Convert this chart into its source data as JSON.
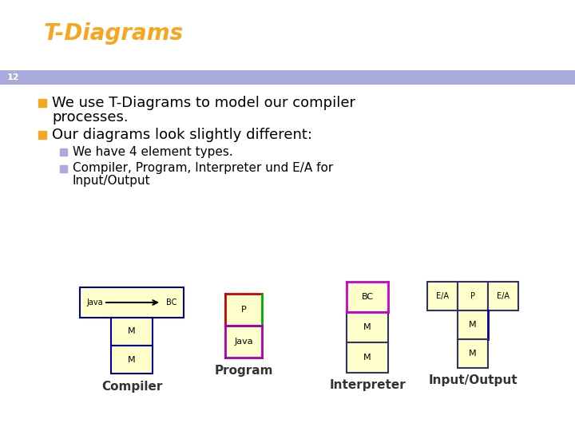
{
  "title": "T-Diagrams",
  "title_color": "#F5A623",
  "slide_number": "12",
  "slide_number_bg": "#FFFFFF",
  "header_bar_color": "#AAAADD",
  "background_color": "#FFFFFF",
  "bullet1a": "We use T-Diagrams to model our compiler",
  "bullet1b": "processes.",
  "bullet2": "Our diagrams look slightly different:",
  "sub_bullet1": "We have 4 element types.",
  "sub_bullet2a": "Compiler, Program, Interpreter und E/A for",
  "sub_bullet2b": "Input/Output",
  "bullet_color": "#F5A623",
  "sub_bullet_color": "#AAAADD",
  "text_color": "#000000",
  "diagram_labels": [
    "Compiler",
    "Program",
    "Interpreter",
    "Input/Output"
  ],
  "diagram_label_color": "#333333",
  "box_fill": "#FFFFCC",
  "box_edge_blue": "#000099",
  "box_edge_dark": "#333366"
}
